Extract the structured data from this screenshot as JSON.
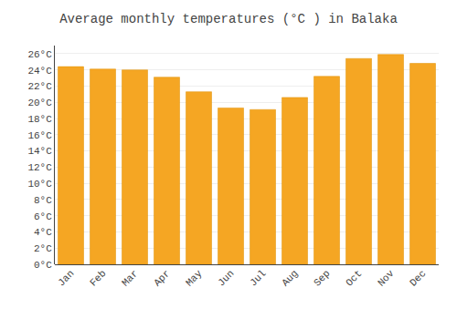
{
  "chart_data": {
    "type": "bar",
    "title": "Average monthly temperatures (°C ) in Balaka",
    "categories": [
      "Jan",
      "Feb",
      "Mar",
      "Apr",
      "May",
      "Jun",
      "Jul",
      "Aug",
      "Sep",
      "Oct",
      "Nov",
      "Dec"
    ],
    "values": [
      24.4,
      24.1,
      24.0,
      23.1,
      21.3,
      19.3,
      19.1,
      20.6,
      23.2,
      25.4,
      25.9,
      24.8
    ],
    "color": "#F5A623",
    "ylim": [
      0,
      27
    ],
    "yticks": [
      {
        "value": 0,
        "label": "0°C"
      },
      {
        "value": 2,
        "label": "2°C"
      },
      {
        "value": 4,
        "label": "4°C"
      },
      {
        "value": 6,
        "label": "6°C"
      },
      {
        "value": 8,
        "label": "8°C"
      },
      {
        "value": 10,
        "label": "10°C"
      },
      {
        "value": 12,
        "label": "12°C"
      },
      {
        "value": 14,
        "label": "14°C"
      },
      {
        "value": 16,
        "label": "16°C"
      },
      {
        "value": 18,
        "label": "18°C"
      },
      {
        "value": 20,
        "label": "20°C"
      },
      {
        "value": 22,
        "label": "22°C"
      },
      {
        "value": 24,
        "label": "24°C"
      },
      {
        "value": 26,
        "label": "26°C"
      }
    ],
    "grid": true
  }
}
